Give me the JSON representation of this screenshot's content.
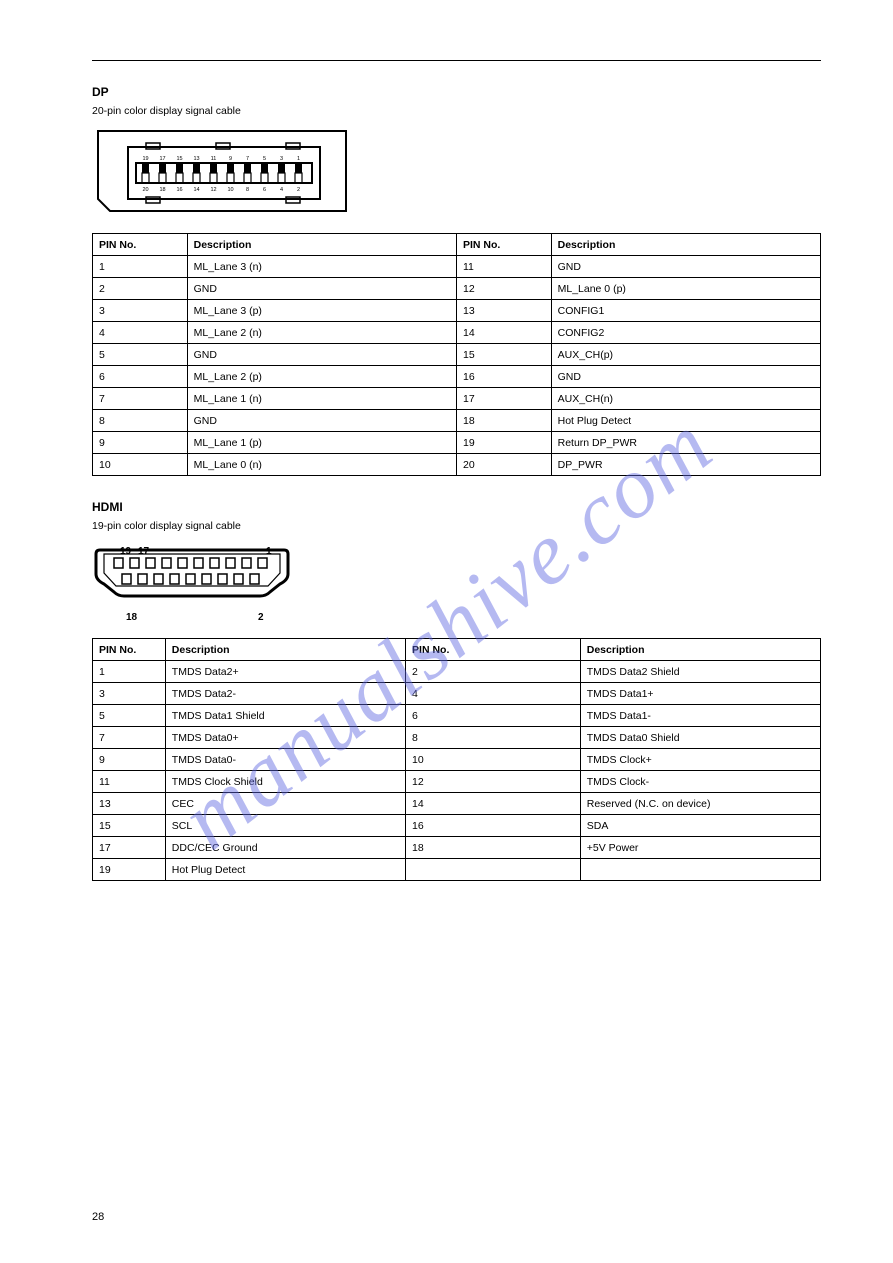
{
  "page_number": "28",
  "watermark_text": "manualshive.com",
  "watermark_color": "rgba(90,100,225,0.45)",
  "section1": {
    "heading": "DP",
    "sub": "20-pin color display signal cable",
    "table": {
      "headers": [
        "PIN No.",
        "Description",
        "PIN No.",
        "Description"
      ],
      "rows": [
        [
          "1",
          "ML_Lane 3 (n)",
          "11",
          "GND"
        ],
        [
          "2",
          "GND",
          "12",
          "ML_Lane 0 (p)"
        ],
        [
          "3",
          "ML_Lane 3 (p)",
          "13",
          "CONFIG1"
        ],
        [
          "4",
          "ML_Lane 2 (n)",
          "14",
          "CONFIG2"
        ],
        [
          "5",
          "GND",
          "15",
          "AUX_CH(p)"
        ],
        [
          "6",
          "ML_Lane 2 (p)",
          "16",
          "GND"
        ],
        [
          "7",
          "ML_Lane 1 (n)",
          "17",
          "AUX_CH(n)"
        ],
        [
          "8",
          "GND",
          "18",
          "Hot Plug Detect"
        ],
        [
          "9",
          "ML_Lane 1 (p)",
          "19",
          "Return DP_PWR"
        ],
        [
          "10",
          "ML_Lane 0 (n)",
          "20",
          "DP_PWR"
        ]
      ]
    },
    "connector": {
      "top_numbers": [
        "19",
        "17",
        "15",
        "13",
        "11",
        "9",
        "7",
        "5",
        "3",
        "1"
      ],
      "bottom_numbers": [
        "20",
        "18",
        "16",
        "14",
        "12",
        "10",
        "8",
        "6",
        "4",
        "2"
      ],
      "pin_count": 20
    }
  },
  "section2": {
    "heading": "HDMI",
    "sub": "19-pin color display signal cable",
    "labels": {
      "top_left": "19",
      "top_left2": "17",
      "top_right": "1",
      "bot_left": "18",
      "bot_right": "2"
    },
    "table": {
      "headers": [
        "PIN No.",
        "Description",
        "PIN No.",
        "Description"
      ],
      "rows": [
        [
          "1",
          "TMDS Data2+",
          "2",
          "TMDS Data2 Shield"
        ],
        [
          "3",
          "TMDS Data2-",
          "4",
          "TMDS Data1+"
        ],
        [
          "5",
          "TMDS Data1 Shield",
          "6",
          "TMDS Data1-"
        ],
        [
          "7",
          "TMDS Data0+",
          "8",
          "TMDS Data0 Shield"
        ],
        [
          "9",
          "TMDS Data0-",
          "10",
          "TMDS Clock+"
        ],
        [
          "11",
          "TMDS Clock Shield",
          "12",
          "TMDS Clock-"
        ],
        [
          "13",
          "CEC",
          "14",
          "Reserved (N.C. on device)"
        ],
        [
          "15",
          "SCL",
          "16",
          "SDA"
        ],
        [
          "17",
          "DDC/CEC Ground",
          "18",
          "+5V Power"
        ],
        [
          "19",
          "Hot Plug Detect",
          "",
          ""
        ]
      ]
    },
    "connector": {
      "top_pins": 10,
      "bottom_pins": 9
    }
  }
}
